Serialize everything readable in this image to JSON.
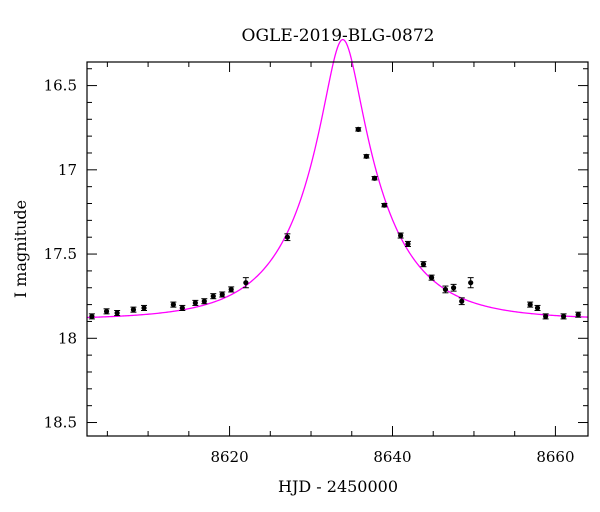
{
  "chart_data": {
    "type": "scatter",
    "title": "OGLE-2019-BLG-0872",
    "xlabel": "HJD - 2450000",
    "ylabel": "I magnitude",
    "xlim": [
      8602.5,
      8664
    ],
    "ylim": [
      18.58,
      16.36
    ],
    "y_inverted": true,
    "x_ticks": [
      8620,
      8640,
      8660
    ],
    "x_minor_step": 5,
    "y_ticks": [
      16.5,
      17,
      17.5,
      18,
      18.5
    ],
    "y_tick_labels": [
      "16.5",
      "17",
      "17.5",
      "18",
      "18.5"
    ],
    "y_minor_step": 0.1,
    "grid": false,
    "model": {
      "name": "",
      "color": "#ff00ff",
      "t0": 8633.9,
      "u0": 0.22,
      "tE": 9.6,
      "baseline_mag": 17.89
    },
    "points": [
      {
        "x": 8603.1,
        "y": 17.87,
        "err": 0.015
      },
      {
        "x": 8604.9,
        "y": 17.84,
        "err": 0.015
      },
      {
        "x": 8606.2,
        "y": 17.85,
        "err": 0.015
      },
      {
        "x": 8608.2,
        "y": 17.83,
        "err": 0.015
      },
      {
        "x": 8609.5,
        "y": 17.82,
        "err": 0.015
      },
      {
        "x": 8613.1,
        "y": 17.8,
        "err": 0.015
      },
      {
        "x": 8614.2,
        "y": 17.82,
        "err": 0.015
      },
      {
        "x": 8615.8,
        "y": 17.79,
        "err": 0.015
      },
      {
        "x": 8616.9,
        "y": 17.78,
        "err": 0.015
      },
      {
        "x": 8618.0,
        "y": 17.75,
        "err": 0.015
      },
      {
        "x": 8619.1,
        "y": 17.74,
        "err": 0.015
      },
      {
        "x": 8620.2,
        "y": 17.71,
        "err": 0.015
      },
      {
        "x": 8622.0,
        "y": 17.67,
        "err": 0.03
      },
      {
        "x": 8627.1,
        "y": 17.4,
        "err": 0.02
      },
      {
        "x": 8635.8,
        "y": 16.76,
        "err": 0.01
      },
      {
        "x": 8636.8,
        "y": 16.92,
        "err": 0.01
      },
      {
        "x": 8637.8,
        "y": 17.05,
        "err": 0.01
      },
      {
        "x": 8639.0,
        "y": 17.21,
        "err": 0.01
      },
      {
        "x": 8641.0,
        "y": 17.39,
        "err": 0.015
      },
      {
        "x": 8641.9,
        "y": 17.44,
        "err": 0.015
      },
      {
        "x": 8643.8,
        "y": 17.56,
        "err": 0.015
      },
      {
        "x": 8644.8,
        "y": 17.64,
        "err": 0.015
      },
      {
        "x": 8646.5,
        "y": 17.71,
        "err": 0.02
      },
      {
        "x": 8647.5,
        "y": 17.7,
        "err": 0.02
      },
      {
        "x": 8648.5,
        "y": 17.78,
        "err": 0.02
      },
      {
        "x": 8649.6,
        "y": 17.67,
        "err": 0.03
      },
      {
        "x": 8656.9,
        "y": 17.8,
        "err": 0.015
      },
      {
        "x": 8657.8,
        "y": 17.82,
        "err": 0.015
      },
      {
        "x": 8658.8,
        "y": 17.87,
        "err": 0.015
      },
      {
        "x": 8661.0,
        "y": 17.87,
        "err": 0.015
      },
      {
        "x": 8662.8,
        "y": 17.86,
        "err": 0.015
      }
    ]
  }
}
